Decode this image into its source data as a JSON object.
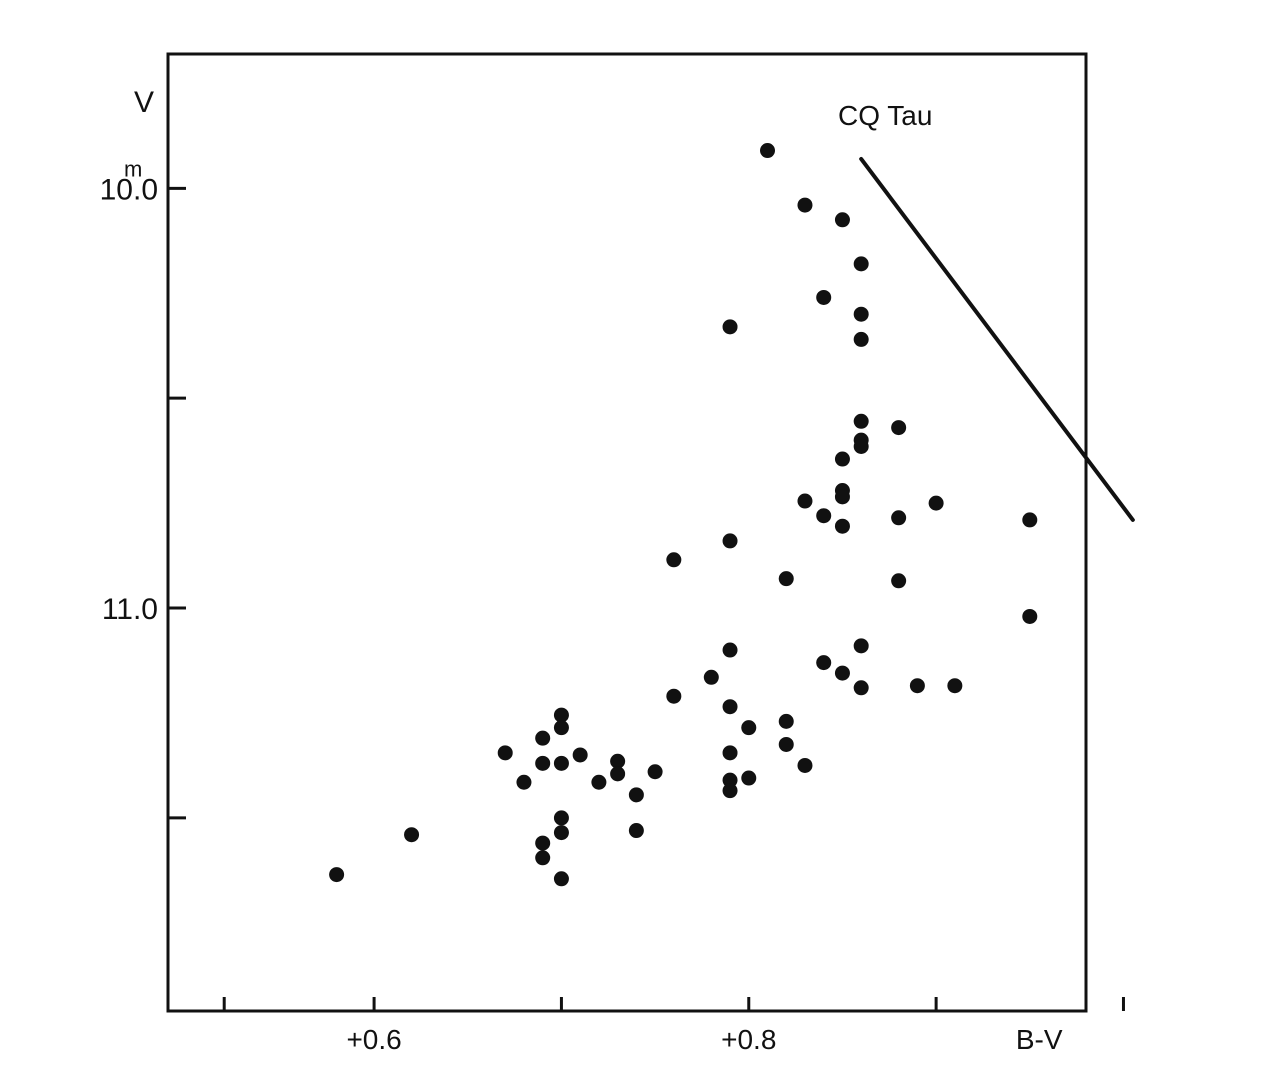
{
  "chart_data": {
    "type": "scatter",
    "title": "CQ Tau",
    "xlabel": "B-V",
    "ylabel": "V",
    "y_unit_superscript": "m",
    "xlim": [
      0.49,
      0.98
    ],
    "ylim": [
      11.96,
      9.68
    ],
    "y_inverted": true,
    "grid": false,
    "x_ticks": [
      0.52,
      0.6,
      0.7,
      0.8,
      0.9,
      1.0
    ],
    "x_tick_labels": [
      {
        "value": 0.6,
        "label": "+0.6"
      },
      {
        "value": 0.8,
        "label": "+0.8"
      },
      {
        "value": 0.955,
        "label": "B-V"
      }
    ],
    "y_ticks": [
      10.0,
      10.5,
      11.0,
      11.5
    ],
    "y_tick_labels": [
      {
        "value": 10.0,
        "label": "10.0"
      },
      {
        "value": 11.0,
        "label": "11.0"
      }
    ],
    "series": [
      {
        "points": [
          {
            "x": 0.81,
            "y": 9.91
          },
          {
            "x": 0.83,
            "y": 10.04
          },
          {
            "x": 0.85,
            "y": 10.075
          },
          {
            "x": 0.86,
            "y": 10.18
          },
          {
            "x": 0.84,
            "y": 10.26
          },
          {
            "x": 0.86,
            "y": 10.3
          },
          {
            "x": 0.79,
            "y": 10.33
          },
          {
            "x": 0.86,
            "y": 10.36
          },
          {
            "x": 0.86,
            "y": 10.555
          },
          {
            "x": 0.88,
            "y": 10.57
          },
          {
            "x": 0.86,
            "y": 10.6
          },
          {
            "x": 0.86,
            "y": 10.615
          },
          {
            "x": 0.85,
            "y": 10.645
          },
          {
            "x": 0.85,
            "y": 10.72
          },
          {
            "x": 0.85,
            "y": 10.735
          },
          {
            "x": 0.83,
            "y": 10.745
          },
          {
            "x": 0.9,
            "y": 10.75
          },
          {
            "x": 0.84,
            "y": 10.78
          },
          {
            "x": 0.88,
            "y": 10.785
          },
          {
            "x": 0.95,
            "y": 10.79
          },
          {
            "x": 0.85,
            "y": 10.805
          },
          {
            "x": 0.79,
            "y": 10.84
          },
          {
            "x": 0.76,
            "y": 10.885
          },
          {
            "x": 0.82,
            "y": 10.93
          },
          {
            "x": 0.88,
            "y": 10.935
          },
          {
            "x": 0.95,
            "y": 11.02
          },
          {
            "x": 0.86,
            "y": 11.09
          },
          {
            "x": 0.79,
            "y": 11.1
          },
          {
            "x": 0.84,
            "y": 11.13
          },
          {
            "x": 0.78,
            "y": 11.165
          },
          {
            "x": 0.85,
            "y": 11.155
          },
          {
            "x": 0.86,
            "y": 11.19
          },
          {
            "x": 0.89,
            "y": 11.185
          },
          {
            "x": 0.91,
            "y": 11.185
          },
          {
            "x": 0.76,
            "y": 11.21
          },
          {
            "x": 0.79,
            "y": 11.235
          },
          {
            "x": 0.7,
            "y": 11.255
          },
          {
            "x": 0.82,
            "y": 11.27
          },
          {
            "x": 0.7,
            "y": 11.285
          },
          {
            "x": 0.8,
            "y": 11.285
          },
          {
            "x": 0.69,
            "y": 11.31
          },
          {
            "x": 0.82,
            "y": 11.325
          },
          {
            "x": 0.67,
            "y": 11.345
          },
          {
            "x": 0.79,
            "y": 11.345
          },
          {
            "x": 0.71,
            "y": 11.35
          },
          {
            "x": 0.73,
            "y": 11.365
          },
          {
            "x": 0.69,
            "y": 11.37
          },
          {
            "x": 0.7,
            "y": 11.37
          },
          {
            "x": 0.83,
            "y": 11.375
          },
          {
            "x": 0.73,
            "y": 11.395
          },
          {
            "x": 0.75,
            "y": 11.39
          },
          {
            "x": 0.68,
            "y": 11.415
          },
          {
            "x": 0.72,
            "y": 11.415
          },
          {
            "x": 0.8,
            "y": 11.405
          },
          {
            "x": 0.79,
            "y": 11.41
          },
          {
            "x": 0.79,
            "y": 11.435
          },
          {
            "x": 0.74,
            "y": 11.445
          },
          {
            "x": 0.7,
            "y": 11.5
          },
          {
            "x": 0.74,
            "y": 11.53
          },
          {
            "x": 0.7,
            "y": 11.535
          },
          {
            "x": 0.62,
            "y": 11.54
          },
          {
            "x": 0.69,
            "y": 11.56
          },
          {
            "x": 0.69,
            "y": 11.595
          },
          {
            "x": 0.58,
            "y": 11.635
          },
          {
            "x": 0.7,
            "y": 11.645
          }
        ]
      }
    ],
    "reference_line": {
      "x": [
        0.86,
        1.005
      ],
      "y": [
        9.93,
        10.79
      ]
    }
  }
}
